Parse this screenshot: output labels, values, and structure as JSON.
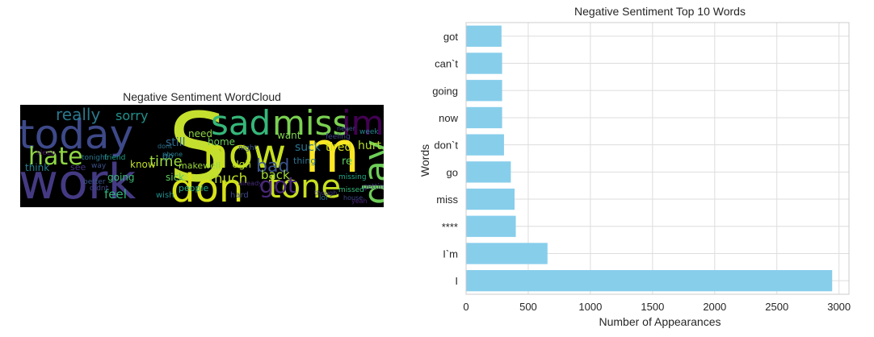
{
  "wordcloud": {
    "title": "Negative Sentiment WordCloud",
    "words": [
      {
        "text": "S",
        "color": "#c5df2e"
      },
      {
        "text": "today",
        "color": "#3e4989"
      },
      {
        "text": "work",
        "color": "#443a83"
      },
      {
        "text": "don",
        "color": "#d8e219"
      },
      {
        "text": "now",
        "color": "#c8e020"
      },
      {
        "text": "sad",
        "color": "#35b779"
      },
      {
        "text": "miss",
        "color": "#7ad151"
      },
      {
        "text": "im",
        "color": "#440154"
      },
      {
        "text": "m",
        "color": "#fde725"
      },
      {
        "text": "tone",
        "color": "#c8e020"
      },
      {
        "text": "day",
        "color": "#6ece58"
      },
      {
        "text": "hate",
        "color": "#8fd744"
      },
      {
        "text": "really",
        "color": "#2a788e"
      },
      {
        "text": "sorry",
        "color": "#21918c"
      },
      {
        "text": "got",
        "color": "#482878"
      },
      {
        "text": "bad",
        "color": "#3b528b"
      },
      {
        "text": "time",
        "color": "#9bd93c"
      },
      {
        "text": "much",
        "color": "#bddf26"
      },
      {
        "text": "back",
        "color": "#a2da37"
      },
      {
        "text": "feel",
        "color": "#2fb47c"
      },
      {
        "text": "still",
        "color": "#31688e"
      },
      {
        "text": "going",
        "color": "#3aba76"
      },
      {
        "text": "need",
        "color": "#8ed645"
      },
      {
        "text": "home",
        "color": "#6ccd5a"
      },
      {
        "text": "want",
        "color": "#7fd34e"
      },
      {
        "text": "suck",
        "color": "#2c738e"
      },
      {
        "text": "tired",
        "color": "#d0e11c"
      },
      {
        "text": "hurt",
        "color": "#b2dd2d"
      },
      {
        "text": "know",
        "color": "#c0df25"
      },
      {
        "text": "Ugh",
        "color": "#b5de2b"
      },
      {
        "text": "think",
        "color": "#26828e"
      },
      {
        "text": "sick",
        "color": "#5ec962"
      },
      {
        "text": "makewell",
        "color": "#9bd93c"
      },
      {
        "text": "people",
        "color": "#26ad81"
      },
      {
        "text": "thing",
        "color": "#2d708e"
      },
      {
        "text": "see",
        "color": "#46327e"
      },
      {
        "text": "way",
        "color": "#3b528b"
      },
      {
        "text": "friend",
        "color": "#1f9e89"
      },
      {
        "text": "wish",
        "color": "#218f8d"
      },
      {
        "text": "hard",
        "color": "#3e4a89"
      },
      {
        "text": "missed",
        "color": "#35b779"
      },
      {
        "text": "lol",
        "color": "#2e6f8e"
      },
      {
        "text": "feeling",
        "color": "#404688"
      },
      {
        "text": "re",
        "color": "#5cc863"
      },
      {
        "text": "night",
        "color": "#39558c"
      },
      {
        "text": "week",
        "color": "#25848e"
      },
      {
        "text": "getting",
        "color": "#443983"
      },
      {
        "text": "sleep",
        "color": "#471365"
      },
      {
        "text": "tonight",
        "color": "#2a768e"
      },
      {
        "text": "phone",
        "color": "#287c8e"
      },
      {
        "text": "missing",
        "color": "#21a585"
      },
      {
        "text": "house",
        "color": "#3f4788"
      },
      {
        "text": "yeah",
        "color": "#482475"
      },
      {
        "text": "never",
        "color": "#3b528b"
      },
      {
        "text": "dont",
        "color": "#2c728e"
      },
      {
        "text": "didnt",
        "color": "#414487"
      },
      {
        "text": "already",
        "color": "#472d7b"
      },
      {
        "text": "go",
        "color": "#2a788e"
      },
      {
        "text": "though",
        "color": "#433d84"
      },
      {
        "text": "better",
        "color": "#39568c"
      }
    ]
  },
  "chart_data": {
    "type": "bar",
    "orientation": "horizontal",
    "title": "Negative Sentiment Top 10 Words",
    "xlabel": "Number of Appearances",
    "ylabel": "Words",
    "categories": [
      "got",
      "can`t",
      "going",
      "now",
      "don`t",
      "go",
      "miss",
      "****",
      "I`m",
      "I"
    ],
    "values": [
      285,
      290,
      290,
      290,
      305,
      360,
      390,
      400,
      655,
      2945
    ],
    "xlim": [
      0,
      3080
    ],
    "xticks": [
      0,
      500,
      1000,
      1500,
      2000,
      2500,
      3000
    ],
    "grid": true,
    "bar_color": "#87ceeb"
  }
}
